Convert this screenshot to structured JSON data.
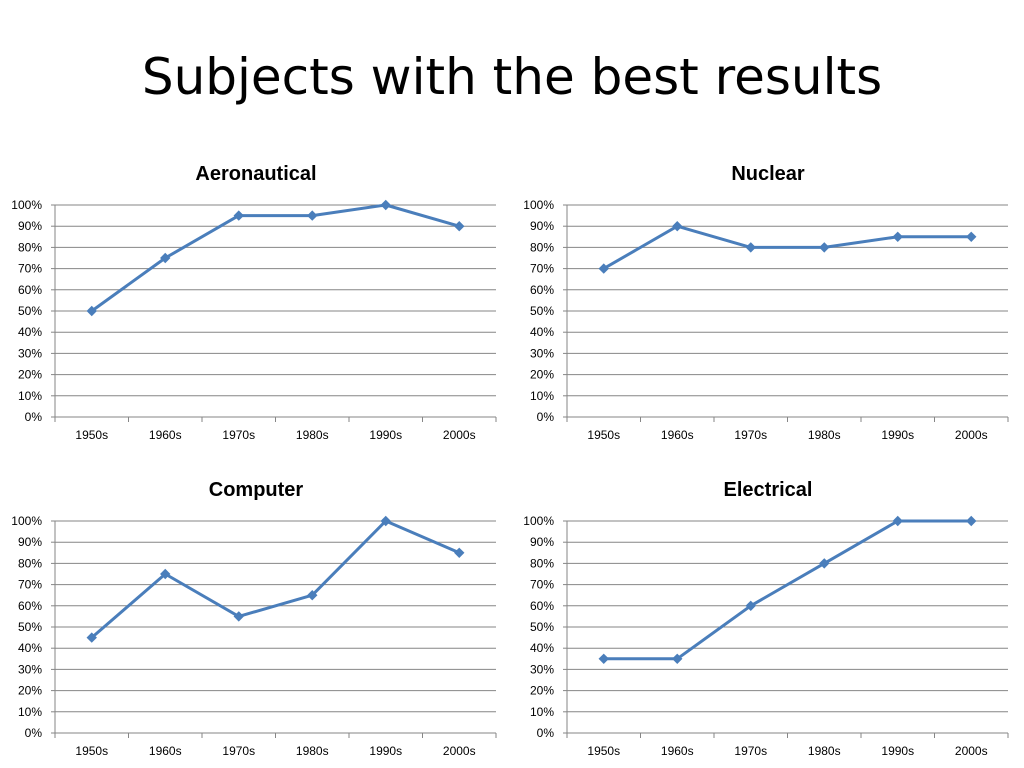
{
  "slide": {
    "title": "Subjects with the best results"
  },
  "colors": {
    "series": "#4a7ebb",
    "grid": "#868686",
    "text": "#000000"
  },
  "chart_data": [
    {
      "type": "line",
      "title": "Aeronautical",
      "categories": [
        "1950s",
        "1960s",
        "1970s",
        "1980s",
        "1990s",
        "2000s"
      ],
      "values": [
        50,
        75,
        95,
        95,
        100,
        90
      ],
      "ylim": [
        0,
        100
      ],
      "yticks": [
        "0%",
        "10%",
        "20%",
        "30%",
        "40%",
        "50%",
        "60%",
        "70%",
        "80%",
        "90%",
        "100%"
      ],
      "grid": true,
      "marker": "diamond",
      "legend": "none"
    },
    {
      "type": "line",
      "title": "Nuclear",
      "categories": [
        "1950s",
        "1960s",
        "1970s",
        "1980s",
        "1990s",
        "2000s"
      ],
      "values": [
        70,
        90,
        80,
        80,
        85,
        85
      ],
      "ylim": [
        0,
        100
      ],
      "yticks": [
        "0%",
        "10%",
        "20%",
        "30%",
        "40%",
        "50%",
        "60%",
        "70%",
        "80%",
        "90%",
        "100%"
      ],
      "grid": true,
      "marker": "diamond",
      "legend": "none"
    },
    {
      "type": "line",
      "title": "Computer",
      "categories": [
        "1950s",
        "1960s",
        "1970s",
        "1980s",
        "1990s",
        "2000s"
      ],
      "values": [
        45,
        75,
        55,
        65,
        100,
        85
      ],
      "ylim": [
        0,
        100
      ],
      "yticks": [
        "0%",
        "10%",
        "20%",
        "30%",
        "40%",
        "50%",
        "60%",
        "70%",
        "80%",
        "90%",
        "100%"
      ],
      "grid": true,
      "marker": "diamond",
      "legend": "none"
    },
    {
      "type": "line",
      "title": "Electrical",
      "categories": [
        "1950s",
        "1960s",
        "1970s",
        "1980s",
        "1990s",
        "2000s"
      ],
      "values": [
        35,
        35,
        60,
        80,
        100,
        100
      ],
      "ylim": [
        0,
        100
      ],
      "yticks": [
        "0%",
        "10%",
        "20%",
        "30%",
        "40%",
        "50%",
        "60%",
        "70%",
        "80%",
        "90%",
        "100%"
      ],
      "grid": true,
      "marker": "diamond",
      "legend": "none"
    }
  ]
}
